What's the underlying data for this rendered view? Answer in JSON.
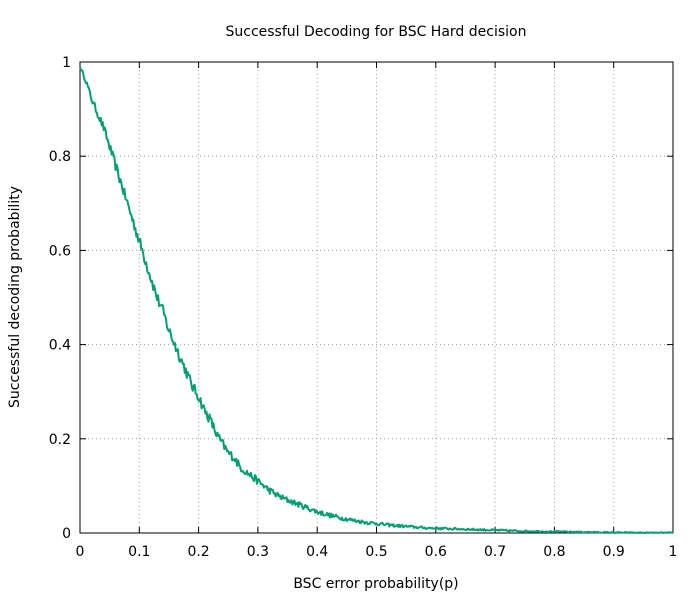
{
  "chart_data": {
    "type": "line",
    "title": "Successful Decoding for BSC Hard decision",
    "xlabel": "BSC error probability(p)",
    "ylabel": "Successful decoding probability",
    "xlim": [
      0,
      1
    ],
    "ylim": [
      0,
      1
    ],
    "x_ticks": [
      "0",
      "0.1",
      "0.2",
      "0.3",
      "0.4",
      "0.5",
      "0.6",
      "0.7",
      "0.8",
      "0.9",
      "1"
    ],
    "y_ticks": [
      "0",
      "0.2",
      "0.4",
      "0.6",
      "0.8",
      "1"
    ],
    "grid": true,
    "grid_style": "dotted",
    "legend": false,
    "line_color": "#009e73",
    "series": [
      {
        "x": [
          0,
          0.01,
          0.02,
          0.03,
          0.04,
          0.05,
          0.06,
          0.07,
          0.08,
          0.09,
          0.1,
          0.11,
          0.12,
          0.13,
          0.14,
          0.15,
          0.16,
          0.17,
          0.18,
          0.19,
          0.2,
          0.21,
          0.22,
          0.23,
          0.24,
          0.25,
          0.26,
          0.27,
          0.28,
          0.29,
          0.3,
          0.32,
          0.34,
          0.36,
          0.38,
          0.4,
          0.42,
          0.44,
          0.46,
          0.48,
          0.5,
          0.52,
          0.55,
          0.58,
          0.6,
          0.65,
          0.7,
          0.75,
          0.8,
          0.85,
          0.9,
          0.95,
          1.0
        ],
        "y": [
          0.99,
          0.96,
          0.92,
          0.89,
          0.86,
          0.82,
          0.78,
          0.74,
          0.7,
          0.66,
          0.62,
          0.58,
          0.54,
          0.5,
          0.47,
          0.43,
          0.4,
          0.37,
          0.34,
          0.31,
          0.29,
          0.26,
          0.24,
          0.21,
          0.19,
          0.17,
          0.16,
          0.14,
          0.13,
          0.12,
          0.11,
          0.09,
          0.075,
          0.065,
          0.055,
          0.045,
          0.038,
          0.032,
          0.027,
          0.023,
          0.02,
          0.017,
          0.014,
          0.011,
          0.01,
          0.008,
          0.006,
          0.004,
          0.003,
          0.002,
          0.001,
          0.0005,
          0.0003
        ]
      }
    ]
  }
}
